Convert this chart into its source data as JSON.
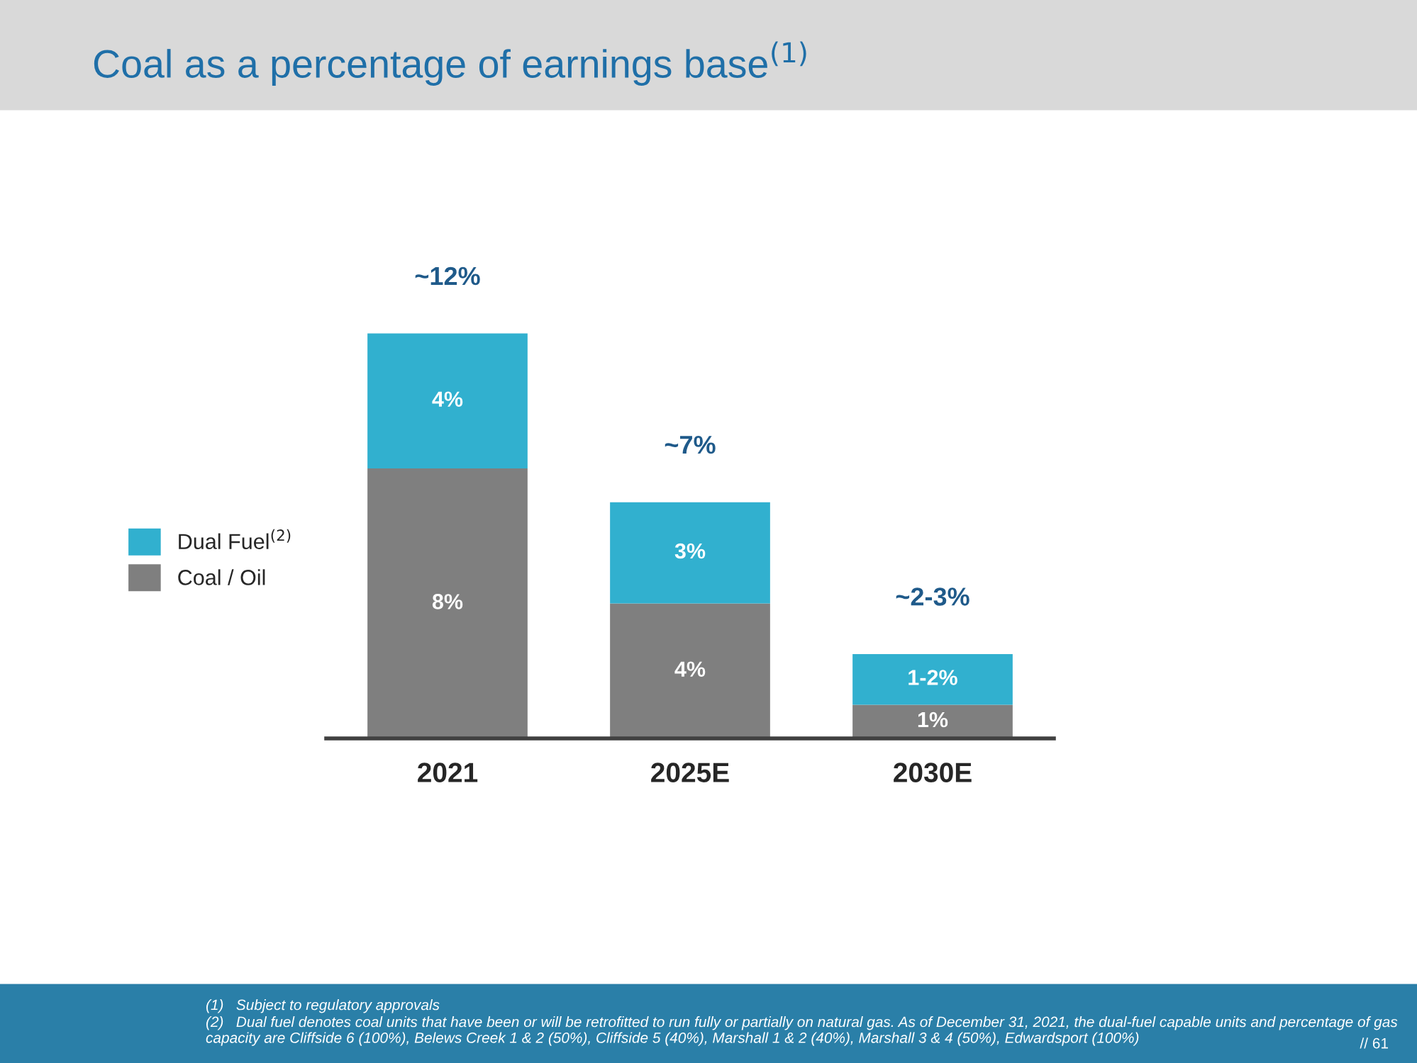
{
  "chart_data": {
    "type": "bar",
    "title": "Coal as a percentage of earnings base$^{(1)}$",
    "categories": [
      "2021",
      "2025E",
      "2030E"
    ],
    "stacked": true,
    "series": [
      {
        "name": "Coal / Oil",
        "color": "#7f7f7f",
        "values": [
          8,
          4,
          1
        ],
        "value_labels": [
          "8%",
          "4%",
          "1%"
        ]
      },
      {
        "name": "Dual Fuel$^{(2)}$",
        "color": "#31b0cf",
        "values": [
          4,
          3,
          1.5
        ],
        "value_labels": [
          "4%",
          "3%",
          "1-2%"
        ]
      }
    ],
    "totals": [
      "~12%",
      "~7%",
      "~2-3%"
    ],
    "legend": "left",
    "tick_labels": "x",
    "grid": false,
    "annotations": [
      "(1)   Subject to regulatory approvals",
      "(2)   Dual fuel denotes coal units that have been or will be retrofitted to run fully or partially on natural gas. As of December 31, 2021, the dual-fuel capable units and percentage of gas capacity are Cliffside 6 (100%), Belews Creek 1 & 2 (50%), Cliffside 5 (40%), Marshall 1 & 2 (40%), Marshall 3 & 4 (50%), Edwardsport (100%)",
      "// 61"
    ]
  }
}
